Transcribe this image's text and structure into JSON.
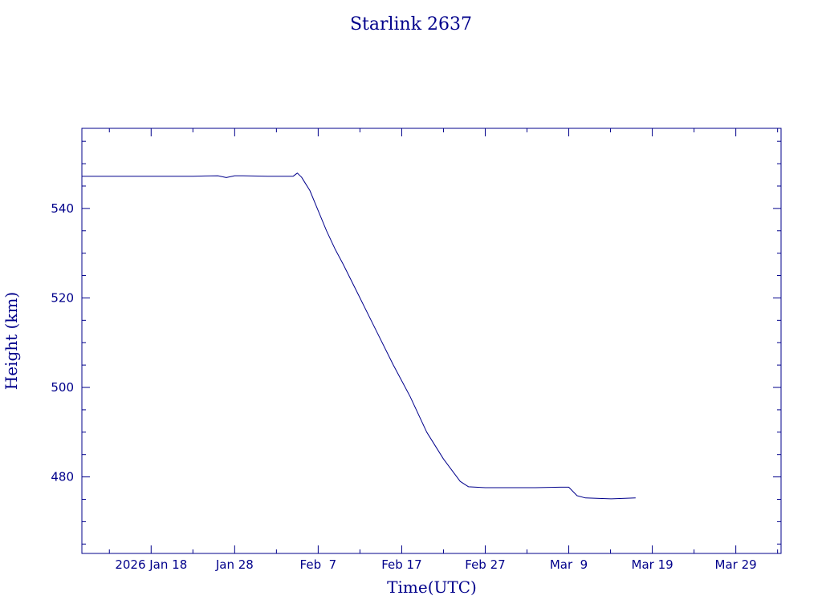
{
  "chart_data": {
    "type": "line",
    "title": "Starlink 2637",
    "xlabel": "Time(UTC)",
    "ylabel": "Height (km)",
    "color": "#00008b",
    "grid": false,
    "x_tick_labels": [
      "2026 Jan 18",
      "Jan 28",
      "Feb  7",
      "Feb 17",
      "Feb 27",
      "Mar  9",
      "Mar 19",
      "Mar 29"
    ],
    "y_tick_labels": [
      "480",
      "500",
      "520",
      "540"
    ],
    "x_ticks": [
      "2026-01-18",
      "2026-01-28",
      "2026-02-07",
      "2026-02-17",
      "2026-02-27",
      "2026-03-09",
      "2026-03-19",
      "2026-03-29"
    ],
    "y_ticks": [
      480,
      500,
      520,
      540
    ],
    "xlim": [
      "2026-01-09T17:00",
      "2026-04-03T10:00"
    ],
    "ylim": [
      462.9,
      557.9
    ],
    "series": [
      {
        "x": [
          "2026-01-09T17:00",
          "2026-01-16",
          "2026-01-23",
          "2026-01-26",
          "2026-01-27",
          "2026-01-28",
          "2026-01-29",
          "2026-02-01",
          "2026-02-04",
          "2026-02-04T12:00",
          "2026-02-05",
          "2026-02-05T12:00",
          "2026-02-06",
          "2026-02-07",
          "2026-02-08",
          "2026-02-09",
          "2026-02-10",
          "2026-02-12",
          "2026-02-14",
          "2026-02-16",
          "2026-02-18",
          "2026-02-20",
          "2026-02-22",
          "2026-02-24",
          "2026-02-25",
          "2026-02-27",
          "2026-03-02",
          "2026-03-05",
          "2026-03-08",
          "2026-03-09",
          "2026-03-10",
          "2026-03-11",
          "2026-03-14",
          "2026-03-17"
        ],
        "y": [
          547.2,
          547.2,
          547.2,
          547.3,
          546.9,
          547.3,
          547.3,
          547.2,
          547.2,
          547.9,
          547.0,
          545.5,
          544.0,
          539.5,
          535.0,
          531.0,
          527.5,
          520.0,
          512.5,
          505.0,
          498.0,
          490.0,
          484.0,
          479.0,
          477.8,
          477.6,
          477.6,
          477.6,
          477.7,
          477.7,
          475.8,
          475.3,
          475.1,
          475.3
        ]
      }
    ]
  }
}
